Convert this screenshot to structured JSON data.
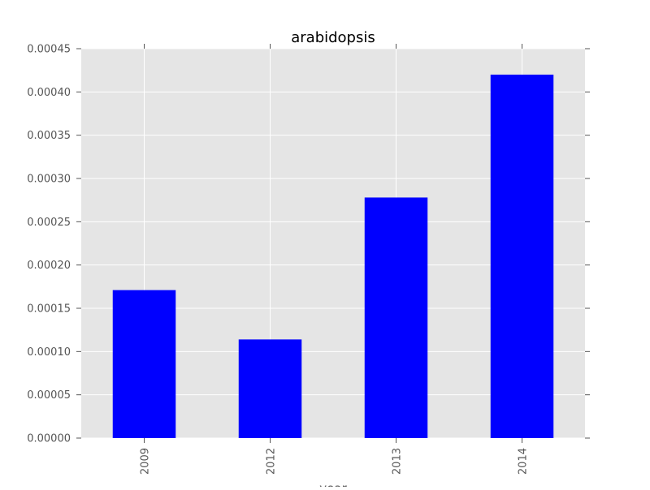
{
  "chart_data": {
    "type": "bar",
    "title": "arabidopsis",
    "xlabel": "year",
    "ylabel": "",
    "categories": [
      "2009",
      "2012",
      "2013",
      "2014"
    ],
    "values": [
      0.000171,
      0.000114,
      0.000278,
      0.00042
    ],
    "ylim": [
      0,
      0.00045
    ],
    "yticks": [
      "0.00000",
      "0.00005",
      "0.00010",
      "0.00015",
      "0.00020",
      "0.00025",
      "0.00030",
      "0.00035",
      "0.00040",
      "0.00045"
    ],
    "bar_color": "#0000ff",
    "background_color": "#e5e5e5",
    "grid": true,
    "xtick_rotation": "vertical"
  }
}
